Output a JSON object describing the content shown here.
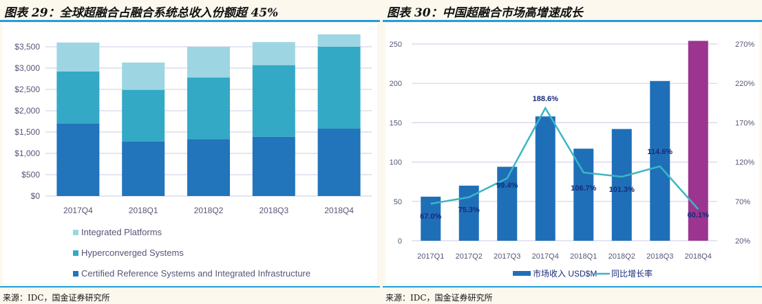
{
  "left": {
    "title": "图表 29：全球超融合占融合系统总收入份额超 45%",
    "source": "来源：IDC，国金证券研究所"
  },
  "right": {
    "title": "图表 30：中国超融合市场高增速成长",
    "source": "来源：IDC，国金证券研究所"
  },
  "colors": {
    "rule": "#1a9fe0",
    "integrated": "#9dd6e2",
    "hyper": "#33a9c6",
    "certified": "#2274bb",
    "bar_blue": "#1f6fb8",
    "bar_purple": "#9b3590",
    "line": "#3bb6c4",
    "label": "#1a2a7a",
    "grid": "#d5d3ea",
    "tick": "#555577"
  },
  "chart_data": [
    {
      "type": "bar",
      "stacked": true,
      "title": "图表 29：全球超融合占融合系统总收入份额超 45%",
      "categories": [
        "2017Q4",
        "2018Q1",
        "2018Q2",
        "2018Q3",
        "2018Q4"
      ],
      "series": [
        {
          "name": "Certified Reference Systems and Integrated Infrastructure",
          "values": [
            1700,
            1280,
            1330,
            1390,
            1580
          ]
        },
        {
          "name": "Hyperconverged Systems",
          "values": [
            1220,
            1210,
            1450,
            1680,
            1920
          ]
        },
        {
          "name": "Integrated Platforms",
          "values": [
            680,
            640,
            720,
            540,
            290
          ]
        }
      ],
      "yticks": [
        0,
        500,
        1000,
        1500,
        2000,
        2500,
        3000,
        3500
      ],
      "ytick_labels": [
        "$0",
        "$500",
        "$1,000",
        "$1,500",
        "$2,000",
        "$2,500",
        "$3,000",
        "$3,500"
      ],
      "ylim": [
        0,
        3800
      ],
      "xlabel": "",
      "ylabel": "",
      "grid": true,
      "legend": [
        "Integrated Platforms",
        "Hyperconverged Systems",
        "Certified Reference Systems and Integrated Infrastructure"
      ],
      "legend_position": "bottom"
    },
    {
      "type": "bar",
      "title": "图表 30：中国超融合市场高增速成长",
      "categories": [
        "2017Q1",
        "2017Q2",
        "2017Q3",
        "2017Q4",
        "2018Q1",
        "2018Q2",
        "2018Q3",
        "2018Q4"
      ],
      "series": [
        {
          "name": "市场收入 USD$M",
          "type": "bar",
          "axis": "left",
          "values": [
            56,
            70,
            94,
            158,
            117,
            142,
            203,
            254
          ]
        },
        {
          "name": "同比增长率",
          "type": "line",
          "axis": "right",
          "values": [
            67.0,
            75.3,
            99.4,
            188.6,
            106.7,
            101.3,
            114.6,
            60.1
          ]
        }
      ],
      "data_labels": [
        "67.0%",
        "75.3%",
        "99.4%",
        "188.6%",
        "106.7%",
        "101.3%",
        "114.6%",
        "60.1%"
      ],
      "yticks_left": [
        0,
        50,
        100,
        150,
        200,
        250
      ],
      "ylim_left": [
        0,
        250
      ],
      "yticks_right": [
        20,
        70,
        120,
        170,
        220,
        270
      ],
      "ytick_labels_right": [
        "20%",
        "70%",
        "120%",
        "170%",
        "220%",
        "270%"
      ],
      "ylim_right": [
        20,
        270
      ],
      "highlight_category": "2018Q4",
      "grid": true,
      "legend": [
        "市场收入 USD$M",
        "同比增长率"
      ],
      "legend_position": "bottom"
    }
  ]
}
